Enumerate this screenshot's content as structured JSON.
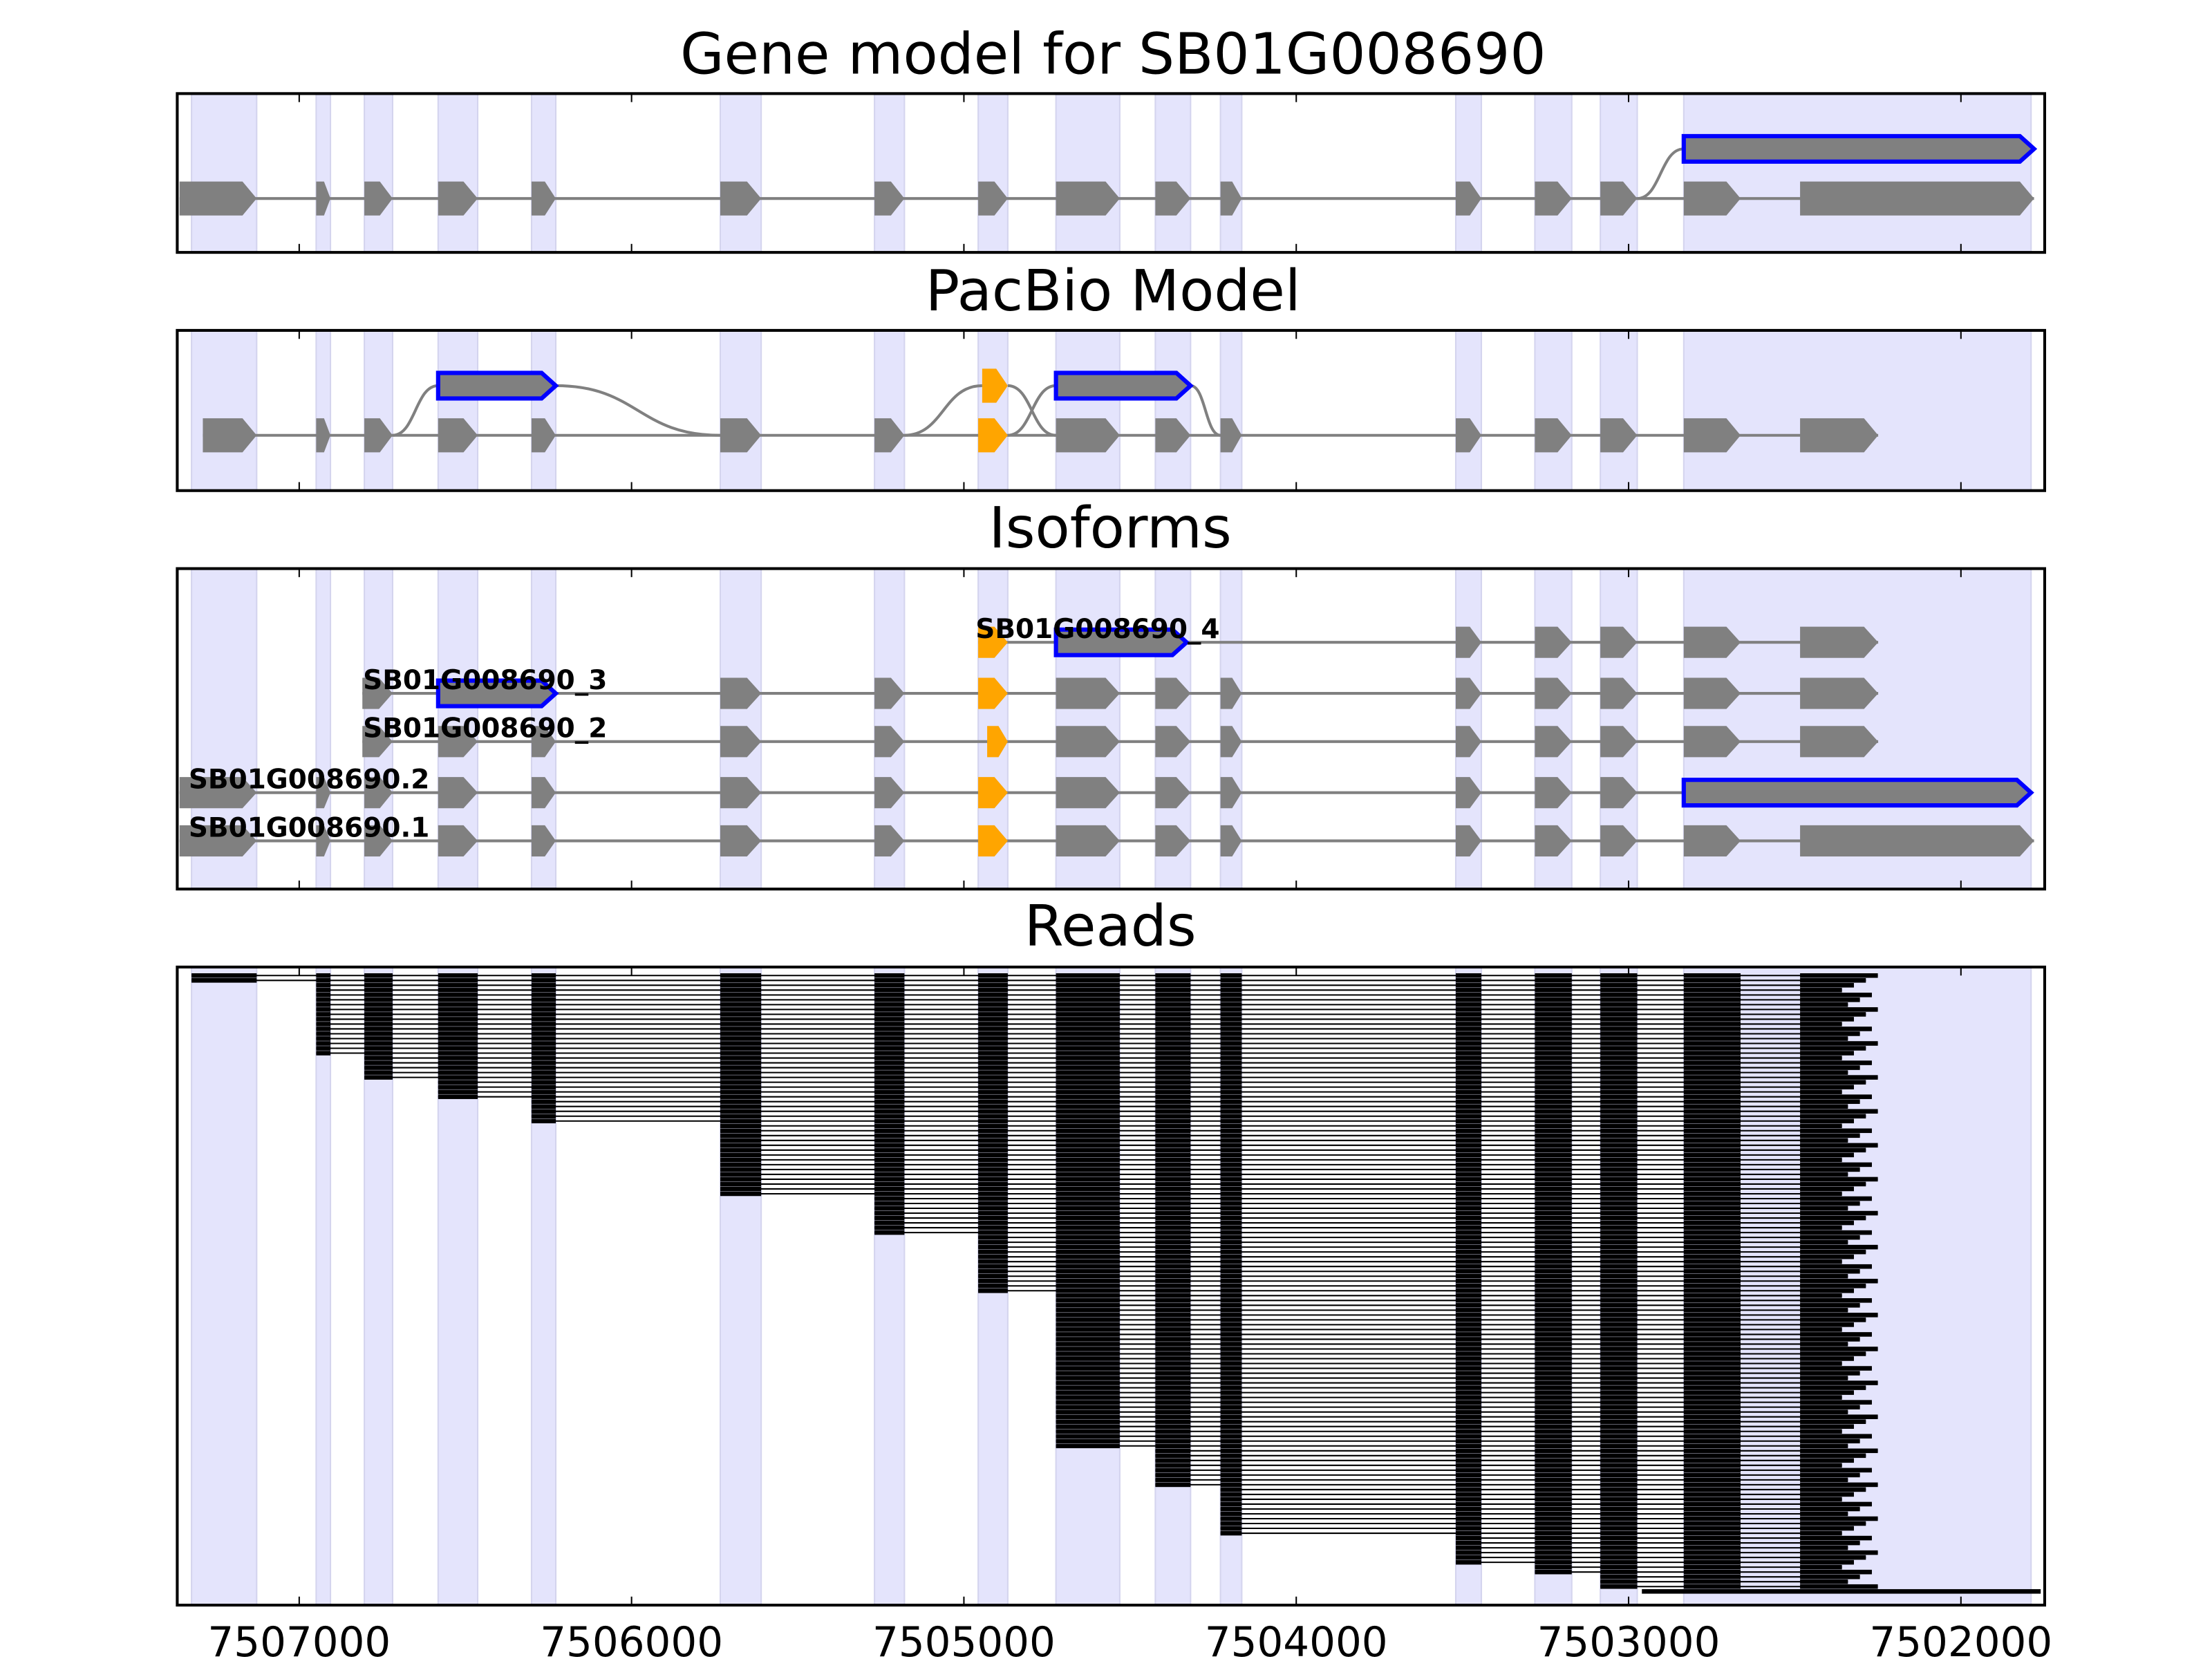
{
  "chart_data": {
    "type": "gene-structure",
    "panels": [
      {
        "title": "Gene model for SB01G008690"
      },
      {
        "title": "PacBio Model"
      },
      {
        "title": "Isoforms"
      },
      {
        "title": "Reads"
      }
    ],
    "xlim": [
      7507367,
      7501748
    ],
    "x_ticks": [
      7507000,
      7506000,
      7505000,
      7504000,
      7503000,
      7502000
    ],
    "x_tick_labels": [
      "7507000",
      "7506000",
      "7505000",
      "7504000",
      "7503000",
      "7502000"
    ],
    "colors": {
      "band": "#e4e4fc",
      "exon": "#808080",
      "alt_exon": "#ffa500",
      "highlight": "#0000ff",
      "intron": "#808080",
      "read": "#000000"
    },
    "exon_bands": [
      [
        7507324,
        7507128
      ],
      [
        7506949,
        7506906
      ],
      [
        7506804,
        7506719
      ],
      [
        7506582,
        7506463
      ],
      [
        7506301,
        7506228
      ],
      [
        7505733,
        7505610
      ],
      [
        7505269,
        7505179
      ],
      [
        7504957,
        7504868
      ],
      [
        7504723,
        7504531
      ],
      [
        7504424,
        7504318
      ],
      [
        7504228,
        7504164
      ],
      [
        7503520,
        7503443
      ],
      [
        7503282,
        7503171
      ],
      [
        7503085,
        7502974
      ],
      [
        7502834,
        7501789
      ]
    ],
    "gene_model": {
      "rows": [
        {
          "exons": [
            [
              7507360,
              7507128,
              "g"
            ],
            [
              7506949,
              7506906,
              "g"
            ],
            [
              7506804,
              7506719,
              "g"
            ],
            [
              7506582,
              7506463,
              "g"
            ],
            [
              7506301,
              7506228,
              "g"
            ],
            [
              7505733,
              7505610,
              "g"
            ],
            [
              7505269,
              7505179,
              "g"
            ],
            [
              7504957,
              7504868,
              "g"
            ],
            [
              7504723,
              7504531,
              "g"
            ],
            [
              7504424,
              7504318,
              "g"
            ],
            [
              7504228,
              7504164,
              "g"
            ],
            [
              7503520,
              7503443,
              "g"
            ],
            [
              7503282,
              7503171,
              "g"
            ],
            [
              7503085,
              7502974,
              "g"
            ],
            [
              7502834,
              7502663,
              "g"
            ],
            [
              7502484,
              7501780,
              "g"
            ]
          ]
        },
        {
          "exons": [
            [
              7502834,
              7501780,
              "b"
            ]
          ],
          "upper": true
        }
      ]
    },
    "pacbio_model": {
      "rows": [
        {
          "exons": [
            [
              7507290,
              7507128,
              "g"
            ],
            [
              7506949,
              7506906,
              "g"
            ],
            [
              7506804,
              7506719,
              "g"
            ],
            [
              7506582,
              7506463,
              "g"
            ],
            [
              7506301,
              7506228,
              "g"
            ],
            [
              7505733,
              7505610,
              "g"
            ],
            [
              7505269,
              7505179,
              "g"
            ],
            [
              7504957,
              7504868,
              "o"
            ],
            [
              7504723,
              7504531,
              "g"
            ],
            [
              7504424,
              7504318,
              "g"
            ],
            [
              7504228,
              7504164,
              "g"
            ],
            [
              7503520,
              7503443,
              "g"
            ],
            [
              7503282,
              7503171,
              "g"
            ],
            [
              7503085,
              7502974,
              "g"
            ],
            [
              7502834,
              7502663,
              "g"
            ],
            [
              7502484,
              7502249,
              "g"
            ]
          ]
        },
        {
          "exons": [
            [
              7506582,
              7506228,
              "b"
            ],
            [
              7504945,
              7504868,
              "o"
            ],
            [
              7504723,
              7504318,
              "b"
            ]
          ],
          "upper": true
        }
      ]
    },
    "isoforms": [
      {
        "name": "SB01G008690_4",
        "exons": [
          [
            7504957,
            7504868,
            "o"
          ],
          [
            7504723,
            7504330,
            "b"
          ],
          [
            7503520,
            7503443,
            "g"
          ],
          [
            7503282,
            7503171,
            "g"
          ],
          [
            7503085,
            7502974,
            "g"
          ],
          [
            7502834,
            7502663,
            "g"
          ],
          [
            7502484,
            7502249,
            "g"
          ]
        ]
      },
      {
        "name": "SB01G008690_3",
        "exons": [
          [
            7506810,
            7506719,
            "g"
          ],
          [
            7506582,
            7506228,
            "b"
          ],
          [
            7505733,
            7505610,
            "g"
          ],
          [
            7505269,
            7505179,
            "g"
          ],
          [
            7504957,
            7504868,
            "o"
          ],
          [
            7504723,
            7504531,
            "g"
          ],
          [
            7504424,
            7504318,
            "g"
          ],
          [
            7504228,
            7504164,
            "g"
          ],
          [
            7503520,
            7503443,
            "g"
          ],
          [
            7503282,
            7503171,
            "g"
          ],
          [
            7503085,
            7502974,
            "g"
          ],
          [
            7502834,
            7502663,
            "g"
          ],
          [
            7502484,
            7502249,
            "g"
          ]
        ]
      },
      {
        "name": "SB01G008690_2",
        "exons": [
          [
            7506810,
            7506719,
            "g"
          ],
          [
            7506582,
            7506463,
            "g"
          ],
          [
            7506301,
            7506228,
            "g"
          ],
          [
            7505733,
            7505610,
            "g"
          ],
          [
            7505269,
            7505179,
            "g"
          ],
          [
            7504930,
            7504868,
            "o"
          ],
          [
            7504723,
            7504531,
            "g"
          ],
          [
            7504424,
            7504318,
            "g"
          ],
          [
            7504228,
            7504164,
            "g"
          ],
          [
            7503520,
            7503443,
            "g"
          ],
          [
            7503282,
            7503171,
            "g"
          ],
          [
            7503085,
            7502974,
            "g"
          ],
          [
            7502834,
            7502663,
            "g"
          ],
          [
            7502484,
            7502249,
            "g"
          ]
        ]
      },
      {
        "name": "SB01G008690.2",
        "exons": [
          [
            7507360,
            7507128,
            "g"
          ],
          [
            7506949,
            7506906,
            "g"
          ],
          [
            7506804,
            7506719,
            "g"
          ],
          [
            7506582,
            7506463,
            "g"
          ],
          [
            7506301,
            7506228,
            "g"
          ],
          [
            7505733,
            7505610,
            "g"
          ],
          [
            7505269,
            7505179,
            "g"
          ],
          [
            7504957,
            7504868,
            "o"
          ],
          [
            7504723,
            7504531,
            "g"
          ],
          [
            7504424,
            7504318,
            "g"
          ],
          [
            7504228,
            7504164,
            "g"
          ],
          [
            7503520,
            7503443,
            "g"
          ],
          [
            7503282,
            7503171,
            "g"
          ],
          [
            7503085,
            7502974,
            "g"
          ],
          [
            7502834,
            7501789,
            "b"
          ]
        ]
      },
      {
        "name": "SB01G008690.1",
        "exons": [
          [
            7507360,
            7507128,
            "g"
          ],
          [
            7506949,
            7506906,
            "g"
          ],
          [
            7506804,
            7506719,
            "g"
          ],
          [
            7506582,
            7506463,
            "g"
          ],
          [
            7506301,
            7506228,
            "g"
          ],
          [
            7505733,
            7505610,
            "g"
          ],
          [
            7505269,
            7505179,
            "g"
          ],
          [
            7504957,
            7504868,
            "o"
          ],
          [
            7504723,
            7504531,
            "g"
          ],
          [
            7504424,
            7504318,
            "g"
          ],
          [
            7504228,
            7504164,
            "g"
          ],
          [
            7503520,
            7503443,
            "g"
          ],
          [
            7503282,
            7503171,
            "g"
          ],
          [
            7503085,
            7502974,
            "g"
          ],
          [
            7502834,
            7502663,
            "g"
          ],
          [
            7502484,
            7501780,
            "g"
          ]
        ]
      }
    ],
    "reads": {
      "read_exons": [
        [
          7507324,
          7507128
        ],
        [
          7506949,
          7506906
        ],
        [
          7506804,
          7506719
        ],
        [
          7506582,
          7506463
        ],
        [
          7506301,
          7506228
        ],
        [
          7505733,
          7505610
        ],
        [
          7505269,
          7505179
        ],
        [
          7504957,
          7504868
        ],
        [
          7504723,
          7504531
        ],
        [
          7504424,
          7504318
        ],
        [
          7504228,
          7504164
        ],
        [
          7503520,
          7503443
        ],
        [
          7503282,
          7503171
        ],
        [
          7503085,
          7502974
        ],
        [
          7502834,
          7502663
        ],
        [
          7502484,
          7502250
        ]
      ],
      "start_groups": [
        {
          "first_exon": 0,
          "count": 2
        },
        {
          "first_exon": 1,
          "count": 15
        },
        {
          "first_exon": 2,
          "count": 5
        },
        {
          "first_exon": 3,
          "count": 4
        },
        {
          "first_exon": 4,
          "count": 5
        },
        {
          "first_exon": 5,
          "count": 15
        },
        {
          "first_exon": 6,
          "count": 8
        },
        {
          "first_exon": 7,
          "count": 12
        },
        {
          "first_exon": 8,
          "count": 32
        },
        {
          "first_exon": 9,
          "count": 8
        },
        {
          "first_exon": 10,
          "count": 10
        },
        {
          "first_exon": 11,
          "count": 6
        },
        {
          "first_exon": 12,
          "count": 2
        },
        {
          "first_exon": 13,
          "count": 3
        }
      ],
      "long_read": [
        7502960,
        7501760
      ]
    }
  }
}
